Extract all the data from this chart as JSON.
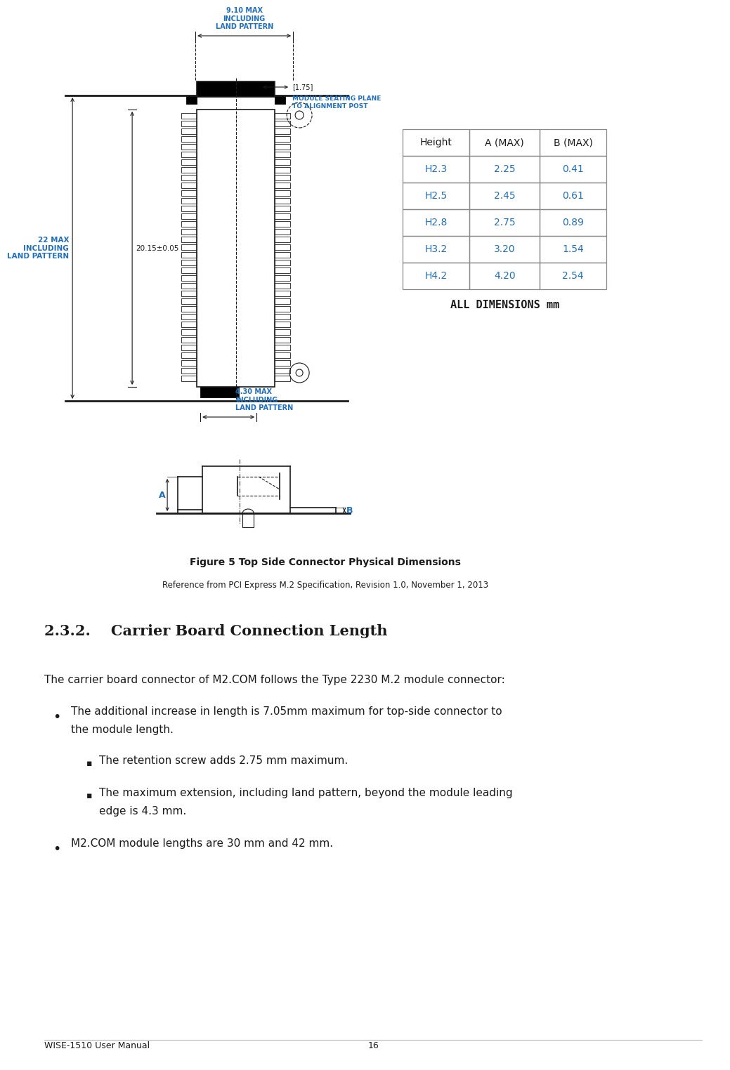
{
  "title": "WISE-1510 User Manual",
  "page_number": "16",
  "figure_caption": "Figure 5 Top Side Connector Physical Dimensions",
  "figure_ref": "Reference from PCI Express M.2 Specification, Revision 1.0, November 1, 2013",
  "section_title": "2.3.2.    Carrier Board Connection Length",
  "body_text": "The carrier board connector of M2.COM follows the Type 2230 M.2 module connector:",
  "bullet1_line1": "The additional increase in length is 7.05mm maximum for top-side connector to",
  "bullet1_line2": "the module length.",
  "sub_bullet1": "The retention screw adds 2.75 mm maximum.",
  "sub_bullet2_line1": "The maximum extension, including land pattern, beyond the module leading",
  "sub_bullet2_line2": "edge is 4.3 mm.",
  "bullet2": "M2.COM module lengths are 30 mm and 42 mm.",
  "table_headers": [
    "Height",
    "A (MAX)",
    "B (MAX)"
  ],
  "table_rows": [
    [
      "H2.3",
      "2.25",
      "0.41"
    ],
    [
      "H2.5",
      "2.45",
      "0.61"
    ],
    [
      "H2.8",
      "2.75",
      "0.89"
    ],
    [
      "H3.2",
      "3.20",
      "1.54"
    ],
    [
      "H4.2",
      "4.20",
      "2.54"
    ]
  ],
  "table_note": "ALL DIMENSIONS mm",
  "dim_label_910": "9.10 MAX\nINCLUDING\nLAND PATTERN",
  "dim_label_175": "[1.75]",
  "dim_label_module": "MODULE SEATING PLANE\nTO ALIGNMENT POST",
  "dim_label_22max": "22 MAX\nINCLUDING\nLAND PATTERN",
  "dim_label_2015": "20.15±0.05",
  "dim_label_430": "4.30 MAX\nINCLUDING\nLAND PATTERN",
  "color_blue": "#1F6FBF",
  "color_orange": "#B35A00",
  "color_dark": "#1a1a1a",
  "color_gray": "#888888",
  "background": "#ffffff"
}
